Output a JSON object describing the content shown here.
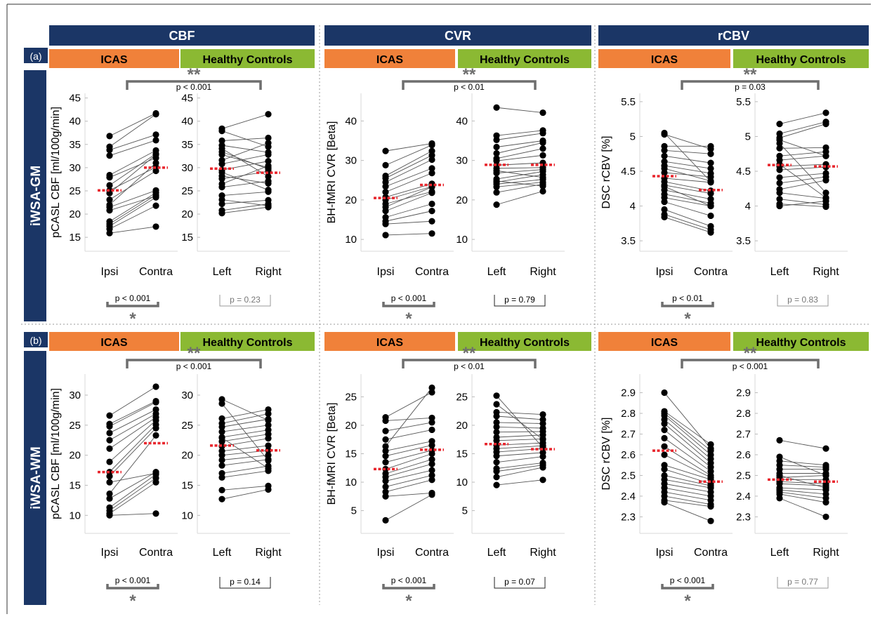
{
  "figure": {
    "column_headers": [
      "CBF",
      "CVR",
      "rCBV"
    ],
    "panel_labels": [
      "(a)",
      "(b)"
    ],
    "row_labels": [
      "iWSA-GM",
      "iWSA-WM"
    ],
    "group_labels": {
      "icas": "ICAS",
      "hc": "Healthy Controls"
    },
    "stars": {
      "double": "**",
      "single": "*"
    }
  },
  "colors": {
    "header_bg": "#1b3666",
    "icas": "#f0813a",
    "healthy": "#8bb933",
    "median": "#e8262d",
    "dot": "#000000",
    "line": "#555555",
    "bracket": "#6e6e6e",
    "gray_text": "#777777"
  },
  "chart_data": [
    {
      "type": "scatter",
      "row": "iWSA-GM",
      "measure": "CBF",
      "ylabel": "pCASL CBF [ml/100g/min]",
      "ylim": [
        12,
        46
      ],
      "ticks": [
        15,
        20,
        25,
        30,
        35,
        40,
        45
      ],
      "icas": {
        "categories": [
          "Ipsi",
          "Contra"
        ],
        "median": [
          25.1,
          30.0
        ],
        "pairs": [
          [
            15.9,
            17.3
          ],
          [
            16.8,
            21.8
          ],
          [
            17.4,
            23.6
          ],
          [
            17.9,
            24.1
          ],
          [
            18.4,
            24.6
          ],
          [
            20.8,
            23.9
          ],
          [
            21.5,
            25.1
          ],
          [
            23.1,
            29.3
          ],
          [
            24.5,
            32.8
          ],
          [
            25.1,
            30.1
          ],
          [
            27.9,
            32.1
          ],
          [
            28.4,
            33.7
          ],
          [
            32.6,
            35.9
          ],
          [
            33.8,
            37.1
          ],
          [
            34.5,
            41.5
          ],
          [
            36.8,
            41.7
          ],
          [
            26.2,
            33.0
          ],
          [
            22.0,
            31.0
          ]
        ],
        "p_text": "p < 0.001",
        "star": "*"
      },
      "hc": {
        "categories": [
          "Left",
          "Right"
        ],
        "median": [
          29.8,
          28.9
        ],
        "pairs": [
          [
            20.2,
            21.5
          ],
          [
            20.8,
            22.2
          ],
          [
            22.2,
            23.0
          ],
          [
            23.1,
            21.8
          ],
          [
            24.0,
            24.8
          ],
          [
            25.8,
            27.1
          ],
          [
            26.5,
            30.4
          ],
          [
            27.6,
            29.2
          ],
          [
            28.2,
            26.6
          ],
          [
            29.5,
            31.4
          ],
          [
            30.8,
            32.8
          ],
          [
            31.6,
            35.3
          ],
          [
            32.8,
            30.0
          ],
          [
            34.1,
            28.1
          ],
          [
            34.8,
            33.3
          ],
          [
            35.8,
            36.4
          ],
          [
            37.9,
            34.5
          ],
          [
            38.4,
            41.5
          ],
          [
            29.0,
            25.2
          ],
          [
            33.4,
            29.7
          ]
        ],
        "p_text": "p = 0.23",
        "p_gray": true
      },
      "between": {
        "p_text": "p < 0.001",
        "star": "**"
      }
    },
    {
      "type": "scatter",
      "row": "iWSA-GM",
      "measure": "CVR",
      "ylabel": "BH-fMRI CVR [Beta]",
      "ylim": [
        7,
        47
      ],
      "ticks": [
        10,
        20,
        30,
        40
      ],
      "icas": {
        "categories": [
          "Ipsi",
          "Contra"
        ],
        "median": [
          20.5,
          23.8
        ],
        "pairs": [
          [
            11.1,
            11.5
          ],
          [
            13.9,
            14.6
          ],
          [
            14.6,
            17.2
          ],
          [
            15.6,
            19.0
          ],
          [
            17.2,
            21.8
          ],
          [
            18.2,
            23.3
          ],
          [
            20.0,
            23.4
          ],
          [
            20.7,
            24.1
          ],
          [
            22.0,
            26.8
          ],
          [
            23.4,
            28.0
          ],
          [
            24.5,
            30.2
          ],
          [
            25.5,
            31.3
          ],
          [
            26.1,
            32.4
          ],
          [
            28.8,
            33.9
          ],
          [
            32.4,
            34.3
          ],
          [
            19.0,
            22.1
          ]
        ],
        "p_text": "p < 0.001",
        "star": "*"
      },
      "hc": {
        "categories": [
          "Left",
          "Right"
        ],
        "median": [
          28.9,
          28.9
        ],
        "pairs": [
          [
            18.8,
            22.2
          ],
          [
            21.9,
            24.0
          ],
          [
            23.3,
            24.5
          ],
          [
            24.0,
            25.2
          ],
          [
            24.5,
            26.4
          ],
          [
            25.3,
            27.2
          ],
          [
            26.8,
            27.7
          ],
          [
            28.0,
            28.2
          ],
          [
            28.8,
            29.4
          ],
          [
            29.9,
            31.3
          ],
          [
            30.5,
            33.0
          ],
          [
            31.8,
            34.5
          ],
          [
            33.4,
            35.0
          ],
          [
            35.2,
            36.9
          ],
          [
            36.3,
            37.6
          ],
          [
            43.4,
            42.1
          ],
          [
            27.4,
            25.7
          ],
          [
            24.8,
            23.5
          ]
        ],
        "p_text": "p = 0.79"
      },
      "between": {
        "p_text": "p < 0.01",
        "star": "**"
      }
    },
    {
      "type": "scatter",
      "row": "iWSA-GM",
      "measure": "rCBV",
      "ylabel": "DSC rCBV [%]",
      "ylim": [
        3.35,
        5.62
      ],
      "ticks": [
        3.5,
        4,
        4.5,
        5,
        5.5
      ],
      "icas": {
        "categories": [
          "Ipsi",
          "Contra"
        ],
        "median": [
          4.43,
          4.23
        ],
        "pairs": [
          [
            3.84,
            3.62
          ],
          [
            3.88,
            3.66
          ],
          [
            3.95,
            3.71
          ],
          [
            4.06,
            3.86
          ],
          [
            4.12,
            4.0
          ],
          [
            4.17,
            4.04
          ],
          [
            4.23,
            4.1
          ],
          [
            4.3,
            4.18
          ],
          [
            4.35,
            4.22
          ],
          [
            4.4,
            4.34
          ],
          [
            4.48,
            4.42
          ],
          [
            4.54,
            4.36
          ],
          [
            4.58,
            4.47
          ],
          [
            4.64,
            4.54
          ],
          [
            4.72,
            4.62
          ],
          [
            4.8,
            4.75
          ],
          [
            4.86,
            4.86
          ],
          [
            5.03,
            4.82
          ],
          [
            5.05,
            4.35
          ],
          [
            4.28,
            4.0
          ]
        ],
        "p_text": "p < 0.01",
        "star": "*"
      },
      "hc": {
        "categories": [
          "Left",
          "Right"
        ],
        "median": [
          4.59,
          4.57
        ],
        "pairs": [
          [
            4.0,
            4.07
          ],
          [
            4.03,
            3.99
          ],
          [
            4.1,
            4.02
          ],
          [
            4.19,
            4.11
          ],
          [
            4.24,
            4.37
          ],
          [
            4.33,
            4.42
          ],
          [
            4.41,
            4.47
          ],
          [
            4.52,
            4.56
          ],
          [
            4.57,
            4.6
          ],
          [
            4.66,
            4.72
          ],
          [
            4.72,
            4.78
          ],
          [
            4.83,
            4.84
          ],
          [
            4.9,
            4.19
          ],
          [
            4.98,
            5.18
          ],
          [
            5.04,
            5.21
          ],
          [
            5.18,
            5.34
          ],
          [
            4.95,
            4.72
          ],
          [
            4.6,
            4.12
          ]
        ],
        "p_text": "p = 0.83",
        "p_gray": true
      },
      "between": {
        "p_text": "p = 0.03",
        "star": "**"
      }
    },
    {
      "type": "scatter",
      "row": "iWSA-WM",
      "measure": "CBF",
      "ylabel": "pCASL CBF [ml/100g/min]",
      "ylim": [
        7,
        33.5
      ],
      "ticks": [
        10,
        15,
        20,
        25,
        30
      ],
      "icas": {
        "categories": [
          "Ipsi",
          "Contra"
        ],
        "median": [
          17.2,
          22.0
        ],
        "pairs": [
          [
            10.0,
            10.3
          ],
          [
            10.3,
            15.5
          ],
          [
            10.8,
            16.2
          ],
          [
            11.3,
            16.8
          ],
          [
            12.8,
            17.2
          ],
          [
            13.6,
            23.3
          ],
          [
            16.5,
            24.5
          ],
          [
            17.2,
            25.1
          ],
          [
            18.9,
            25.8
          ],
          [
            21.1,
            26.3
          ],
          [
            22.5,
            26.9
          ],
          [
            23.7,
            27.6
          ],
          [
            24.8,
            28.8
          ],
          [
            25.2,
            29.0
          ],
          [
            26.6,
            31.4
          ],
          [
            15.5,
            17.0
          ]
        ],
        "p_text": "p < 0.001",
        "star": "*"
      },
      "hc": {
        "categories": [
          "Left",
          "Right"
        ],
        "median": [
          21.6,
          20.8
        ],
        "pairs": [
          [
            12.7,
            14.3
          ],
          [
            14.2,
            14.9
          ],
          [
            16.3,
            17.4
          ],
          [
            17.0,
            18.2
          ],
          [
            18.3,
            19.3
          ],
          [
            19.2,
            20.0
          ],
          [
            20.0,
            20.8
          ],
          [
            20.7,
            21.6
          ],
          [
            21.5,
            22.8
          ],
          [
            22.3,
            23.5
          ],
          [
            23.0,
            24.2
          ],
          [
            23.9,
            25.0
          ],
          [
            24.7,
            26.0
          ],
          [
            25.3,
            26.9
          ],
          [
            26.1,
            27.6
          ],
          [
            29.3,
            25.8
          ],
          [
            28.6,
            19.1
          ],
          [
            22.9,
            17.8
          ]
        ],
        "p_text": "p = 0.14"
      },
      "between": {
        "p_text": "p < 0.001",
        "star": "**"
      }
    },
    {
      "type": "scatter",
      "row": "iWSA-WM",
      "measure": "CVR",
      "ylabel": "BH-fMRI CVR [Beta]",
      "ylim": [
        1,
        29
      ],
      "ticks": [
        5,
        10,
        15,
        20,
        25
      ],
      "icas": {
        "categories": [
          "Ipsi",
          "Contra"
        ],
        "median": [
          12.3,
          15.7
        ],
        "pairs": [
          [
            3.3,
            7.8
          ],
          [
            7.5,
            8.1
          ],
          [
            8.3,
            10.4
          ],
          [
            9.2,
            11.2
          ],
          [
            10.2,
            12.1
          ],
          [
            10.9,
            13.2
          ],
          [
            11.5,
            14.0
          ],
          [
            12.3,
            15.0
          ],
          [
            13.5,
            15.6
          ],
          [
            14.6,
            16.5
          ],
          [
            15.5,
            17.2
          ],
          [
            17.5,
            19.2
          ],
          [
            19.0,
            20.5
          ],
          [
            20.8,
            21.3
          ],
          [
            21.4,
            25.8
          ],
          [
            16.3,
            26.6
          ]
        ],
        "p_text": "p < 0.001",
        "star": "*"
      },
      "hc": {
        "categories": [
          "Left",
          "Right"
        ],
        "median": [
          16.7,
          15.8
        ],
        "pairs": [
          [
            9.5,
            10.4
          ],
          [
            10.9,
            12.6
          ],
          [
            12.4,
            13.4
          ],
          [
            13.5,
            14.5
          ],
          [
            14.6,
            15.2
          ],
          [
            15.3,
            15.9
          ],
          [
            15.9,
            16.4
          ],
          [
            16.5,
            16.9
          ],
          [
            17.3,
            17.6
          ],
          [
            17.9,
            18.3
          ],
          [
            18.8,
            18.9
          ],
          [
            19.7,
            19.5
          ],
          [
            20.5,
            20.3
          ],
          [
            21.6,
            21.0
          ],
          [
            22.3,
            21.9
          ],
          [
            23.7,
            17.5
          ],
          [
            25.2,
            16.1
          ],
          [
            11.9,
            13.0
          ]
        ],
        "p_text": "p = 0.07"
      },
      "between": {
        "p_text": "p < 0.01",
        "star": "**"
      }
    },
    {
      "type": "scatter",
      "row": "iWSA-WM",
      "measure": "rCBV",
      "ylabel": "DSC rCBV [%]",
      "ylim": [
        2.22,
        2.99
      ],
      "ticks": [
        2.3,
        2.4,
        2.5,
        2.6,
        2.7,
        2.8,
        2.9
      ],
      "icas": {
        "categories": [
          "Ipsi",
          "Contra"
        ],
        "median": [
          2.62,
          2.47
        ],
        "pairs": [
          [
            2.37,
            2.28
          ],
          [
            2.38,
            2.35
          ],
          [
            2.4,
            2.36
          ],
          [
            2.42,
            2.38
          ],
          [
            2.44,
            2.4
          ],
          [
            2.46,
            2.42
          ],
          [
            2.48,
            2.44
          ],
          [
            2.5,
            2.45
          ],
          [
            2.53,
            2.46
          ],
          [
            2.55,
            2.48
          ],
          [
            2.6,
            2.49
          ],
          [
            2.64,
            2.5
          ],
          [
            2.68,
            2.52
          ],
          [
            2.72,
            2.54
          ],
          [
            2.75,
            2.56
          ],
          [
            2.77,
            2.58
          ],
          [
            2.79,
            2.6
          ],
          [
            2.8,
            2.62
          ],
          [
            2.81,
            2.65
          ],
          [
            2.9,
            2.63
          ]
        ],
        "p_text": "p < 0.001",
        "star": "*"
      },
      "hc": {
        "categories": [
          "Left",
          "Right"
        ],
        "median": [
          2.48,
          2.47
        ],
        "pairs": [
          [
            2.39,
            2.3
          ],
          [
            2.41,
            2.37
          ],
          [
            2.42,
            2.39
          ],
          [
            2.43,
            2.41
          ],
          [
            2.44,
            2.43
          ],
          [
            2.46,
            2.45
          ],
          [
            2.47,
            2.46
          ],
          [
            2.48,
            2.48
          ],
          [
            2.49,
            2.5
          ],
          [
            2.51,
            2.51
          ],
          [
            2.53,
            2.53
          ],
          [
            2.55,
            2.54
          ],
          [
            2.57,
            2.55
          ],
          [
            2.59,
            2.5
          ],
          [
            2.67,
            2.63
          ],
          [
            2.5,
            2.44
          ]
        ],
        "p_text": "p = 0.77",
        "p_gray": true
      },
      "between": {
        "p_text": "p < 0.001",
        "star": "**"
      }
    }
  ]
}
